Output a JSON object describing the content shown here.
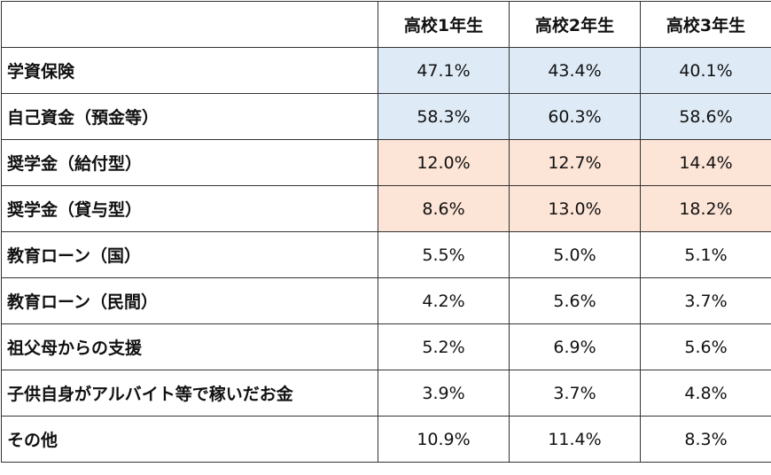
{
  "chart_data": {
    "type": "table",
    "columns": [
      "",
      "高校1年生",
      "高校2年生",
      "高校3年生"
    ],
    "rows": [
      {
        "label": "学資保険",
        "values": [
          "47.1%",
          "43.4%",
          "40.1%"
        ],
        "highlight": "#deebf7"
      },
      {
        "label": "自己資金（預金等）",
        "values": [
          "58.3%",
          "60.3%",
          "58.6%"
        ],
        "highlight": "#deebf7"
      },
      {
        "label": "奨学金（給付型）",
        "values": [
          "12.0%",
          "12.7%",
          "14.4%"
        ],
        "highlight": "#fce4d6"
      },
      {
        "label": "奨学金（貸与型）",
        "values": [
          "8.6%",
          "13.0%",
          "18.2%"
        ],
        "highlight": "#fce4d6"
      },
      {
        "label": "教育ローン（国）",
        "values": [
          "5.5%",
          "5.0%",
          "5.1%"
        ],
        "highlight": ""
      },
      {
        "label": "教育ローン（民間）",
        "values": [
          "4.2%",
          "5.6%",
          "3.7%"
        ],
        "highlight": ""
      },
      {
        "label": "祖父母からの支援",
        "values": [
          "5.2%",
          "6.9%",
          "5.6%"
        ],
        "highlight": ""
      },
      {
        "label": "子供自身がアルバイト等で稼いだお金",
        "values": [
          "3.9%",
          "3.7%",
          "4.8%"
        ],
        "highlight": ""
      },
      {
        "label": "その他",
        "values": [
          "10.9%",
          "11.4%",
          "8.3%"
        ],
        "highlight": ""
      }
    ]
  }
}
